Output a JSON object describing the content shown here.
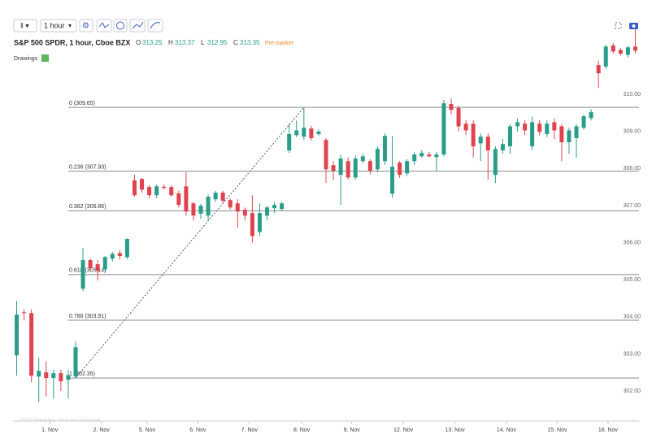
{
  "chart_data": {
    "type": "candlestick",
    "toolbar": {
      "interval": "1 hour",
      "drawings": "Drawings"
    },
    "title": "S&P 500 SPDR, 1 hour, Cboe BZX",
    "ohlc": [
      {
        "key": "O",
        "value": 313.25
      },
      {
        "key": "H",
        "value": 313.37
      },
      {
        "key": "L",
        "value": 312.95
      },
      {
        "key": "C",
        "value": 313.35
      }
    ],
    "session": "Pre-market",
    "credit": "©2018 TradingView, Charts data by Barchart",
    "up_color": "#2a9d8a",
    "down_color": "#e0434f",
    "open": [
      302.96,
      304.12,
      304.1,
      302.39,
      302.5,
      302.35,
      302.48,
      302.3,
      302.39,
      304.76,
      305.53,
      305.42,
      305.28,
      305.57,
      305.72,
      305.61,
      307.68,
      307.72,
      307.5,
      307.28,
      307.51,
      307.5,
      307.33,
      307.52,
      307.06,
      306.78,
      306.73,
      307.17,
      307.35,
      307.15,
      307.06,
      306.89,
      306.8,
      306.29,
      306.73,
      306.93,
      306.91,
      308.49,
      308.9,
      308.86,
      309.08,
      308.93,
      308.77,
      308.09,
      307.83,
      308.2,
      307.76,
      308.2,
      308.2,
      307.98,
      308.2,
      307.32,
      308.16,
      307.87,
      308.2,
      308.33,
      308.38,
      308.31,
      308.38,
      309.74,
      309.63,
      309.21,
      309.21,
      308.68,
      308.86,
      307.83,
      308.49,
      308.6,
      309.14,
      309.21,
      308.6,
      309.21,
      308.93,
      309.25,
      309.14,
      308.71,
      308.82,
      309.1,
      309.36,
      310.79,
      310.75,
      311.32,
      311.2,
      311.07,
      311.29
    ],
    "high": [
      304.43,
      304.2,
      304.2,
      302.9,
      302.8,
      302.57,
      302.57,
      302.57,
      303.33,
      305.86,
      305.57,
      305.53,
      305.64,
      305.75,
      305.8,
      306.12,
      307.83,
      307.75,
      307.55,
      307.57,
      307.57,
      307.55,
      307.4,
      307.9,
      307.1,
      307.05,
      307.3,
      307.4,
      307.4,
      307.2,
      307.17,
      306.95,
      307.28,
      307.06,
      307.0,
      307.1,
      307.1,
      309.21,
      309.3,
      309.65,
      309.15,
      309.05,
      308.82,
      308.2,
      308.38,
      308.3,
      308.35,
      308.4,
      308.25,
      308.6,
      308.95,
      308.88,
      308.2,
      308.25,
      308.45,
      308.5,
      308.45,
      308.45,
      309.85,
      309.9,
      309.7,
      309.3,
      309.3,
      308.95,
      308.95,
      308.6,
      308.8,
      309.2,
      309.35,
      309.3,
      309.4,
      309.3,
      309.3,
      309.35,
      309.2,
      309.1,
      309.2,
      309.45,
      309.6,
      310.9,
      311.34,
      311.38,
      311.25,
      311.3,
      311.75
    ],
    "low": [
      302.41,
      303.9,
      302.24,
      301.7,
      301.85,
      301.8,
      302.0,
      301.8,
      302.35,
      304.69,
      305.24,
      304.98,
      305.2,
      305.5,
      305.55,
      305.55,
      307.24,
      307.35,
      307.2,
      307.2,
      307.43,
      307.24,
      306.95,
      306.73,
      306.6,
      306.65,
      306.6,
      307.1,
      307.05,
      306.9,
      306.4,
      306.6,
      306.0,
      306.18,
      306.6,
      306.8,
      306.85,
      308.42,
      308.85,
      308.77,
      308.75,
      308.88,
      307.61,
      307.68,
      307.02,
      307.7,
      307.7,
      308.15,
      307.85,
      307.9,
      308.1,
      307.21,
      307.75,
      307.8,
      308.1,
      308.3,
      308.3,
      307.94,
      308.33,
      309.47,
      309.0,
      308.9,
      308.3,
      308.2,
      307.7,
      307.61,
      308.4,
      308.4,
      309.0,
      308.9,
      308.5,
      308.9,
      308.85,
      308.8,
      308.2,
      308.4,
      308.3,
      309.05,
      309.3,
      310.17,
      310.68,
      311.1,
      311.05,
      311.0,
      311.1
    ],
    "close": [
      304.06,
      304.1,
      302.41,
      302.54,
      302.35,
      302.48,
      302.26,
      302.43,
      303.18,
      305.53,
      305.31,
      305.24,
      305.61,
      305.7,
      305.64,
      306.1,
      307.28,
      307.43,
      307.28,
      307.52,
      307.48,
      307.28,
      307.02,
      306.84,
      306.73,
      307.0,
      307.24,
      307.35,
      307.13,
      306.95,
      306.84,
      306.73,
      306.18,
      306.8,
      306.95,
      307.02,
      307.06,
      308.93,
      309.03,
      309.1,
      308.82,
      309.0,
      307.98,
      307.94,
      308.27,
      307.76,
      308.27,
      308.33,
      307.94,
      308.53,
      308.88,
      308.05,
      307.83,
      308.2,
      308.38,
      308.42,
      308.33,
      308.38,
      309.76,
      309.58,
      309.14,
      309.03,
      308.6,
      308.86,
      308.49,
      308.53,
      308.66,
      309.14,
      309.25,
      309.03,
      309.25,
      308.99,
      309.21,
      309.03,
      308.71,
      309.03,
      309.14,
      309.41,
      309.52,
      310.57,
      311.29,
      311.16,
      311.1,
      311.27,
      311.18
    ],
    "xlim": [
      -0.5,
      84.5
    ],
    "xticks": [
      {
        "value": 4.5,
        "label": "1. Nov"
      },
      {
        "value": 11.5,
        "label": "2. Nov"
      },
      {
        "value": 17.7,
        "label": "5. Nov"
      },
      {
        "value": 24.6,
        "label": "6. Nov"
      },
      {
        "value": 31.6,
        "label": "7. Nov"
      },
      {
        "value": 38.7,
        "label": "8. Nov"
      },
      {
        "value": 45.5,
        "label": "9. Nov"
      },
      {
        "value": 52.5,
        "label": "12. Nov"
      },
      {
        "value": 59.5,
        "label": "13. Nov"
      },
      {
        "value": 66.5,
        "label": "14. Nov"
      },
      {
        "value": 73.4,
        "label": "15. Nov"
      },
      {
        "value": 80.3,
        "label": "16. Nov"
      }
    ],
    "ylim": [
      301.19,
      311.67
    ],
    "yticks": [
      {
        "value": 302,
        "label": "302.00"
      },
      {
        "value": 303,
        "label": "303.00"
      },
      {
        "value": 304,
        "label": "304.00"
      },
      {
        "value": 305,
        "label": "305.00"
      },
      {
        "value": 306,
        "label": "306.00"
      },
      {
        "value": 307,
        "label": "307.00"
      },
      {
        "value": 308,
        "label": "308.00"
      },
      {
        "value": 309,
        "label": "309.00"
      },
      {
        "value": 310,
        "label": "310.00"
      }
    ],
    "fib_levels": [
      {
        "label": "0 (309.65)",
        "value": 309.65
      },
      {
        "label": "0.236 (307.93)",
        "value": 307.93
      },
      {
        "label": "0.382 (306.86)",
        "value": 306.86
      },
      {
        "label": "0.618 (305.14)",
        "value": 305.14
      },
      {
        "label": "0.786 (303.91)",
        "value": 303.91
      },
      {
        "label": "1 (302.35)",
        "value": 302.35
      }
    ],
    "trendline": {
      "from": [
        8,
        302.35
      ],
      "to": [
        39,
        309.65
      ]
    }
  }
}
